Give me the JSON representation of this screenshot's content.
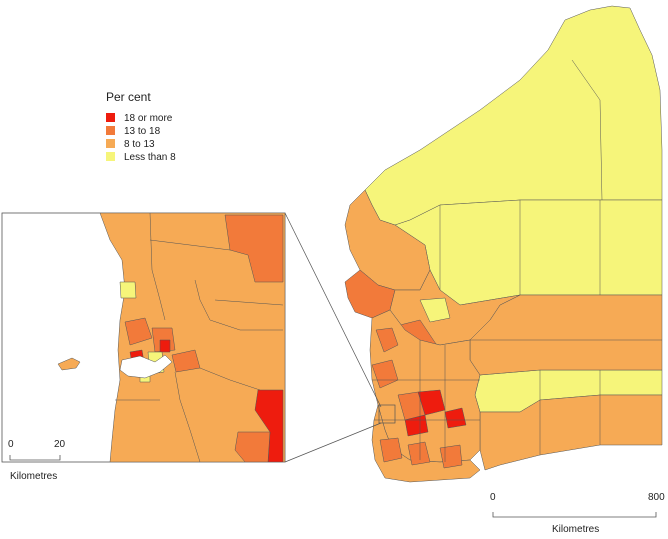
{
  "legend": {
    "title": "Per cent",
    "items": [
      {
        "label": "18 or more",
        "color": "#ee1c0e"
      },
      {
        "label": "13 to 18",
        "color": "#f27a3a"
      },
      {
        "label": "8 to 13",
        "color": "#f6aa55"
      },
      {
        "label": "Less than 8",
        "color": "#f6f57a"
      }
    ]
  },
  "main_scale": {
    "start": "0",
    "end": "800",
    "unit": "Kilometres"
  },
  "inset_scale": {
    "start": "0",
    "end": "20",
    "unit": "Kilometres"
  },
  "colors": {
    "class_18_or_more": "#ee1c0e",
    "class_13_to_18": "#f27a3a",
    "class_8_to_13": "#f6aa55",
    "class_less_than_8": "#f6f57a",
    "boundary": "#555555",
    "water": "#ffffff"
  }
}
